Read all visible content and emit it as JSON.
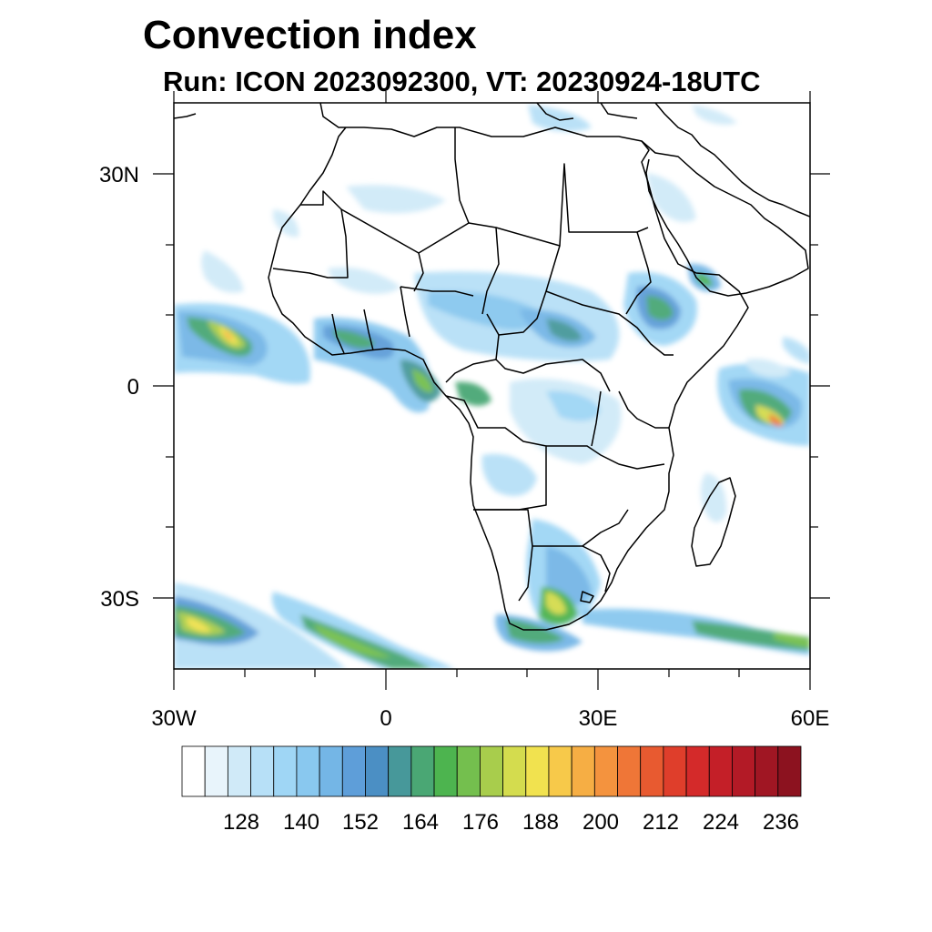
{
  "title": "Convection index",
  "subtitle": "Run: ICON 2023092300,  VT: 20230924-18UTC",
  "axes": {
    "lat_labels": [
      "30N",
      "0",
      "30S"
    ],
    "lat_values": [
      30,
      0,
      -30
    ],
    "lon_labels": [
      "30W",
      "0",
      "30E",
      "60E"
    ],
    "lon_values": [
      -30,
      0,
      30,
      60
    ],
    "lat_range": [
      -40,
      40
    ],
    "lon_range": [
      -30,
      60
    ]
  },
  "colorbar": {
    "labels": [
      "128",
      "140",
      "152",
      "164",
      "176",
      "188",
      "200",
      "212",
      "224",
      "236"
    ],
    "colors": [
      "#ffffff",
      "#e8f4fb",
      "#d0eaf8",
      "#b7e0f7",
      "#9fd6f5",
      "#89c8ef",
      "#74b6e6",
      "#5e9ed9",
      "#4b8fc4",
      "#47989a",
      "#4aa774",
      "#4db44f",
      "#74bf4e",
      "#a8cd4c",
      "#d4dc4e",
      "#f1e24f",
      "#f7c94a",
      "#f6ae44",
      "#f4933e",
      "#ef7637",
      "#e85a30",
      "#df3e2b",
      "#d42a2a",
      "#c41f28",
      "#b31a26",
      "#a01623",
      "#8c121f"
    ]
  }
}
